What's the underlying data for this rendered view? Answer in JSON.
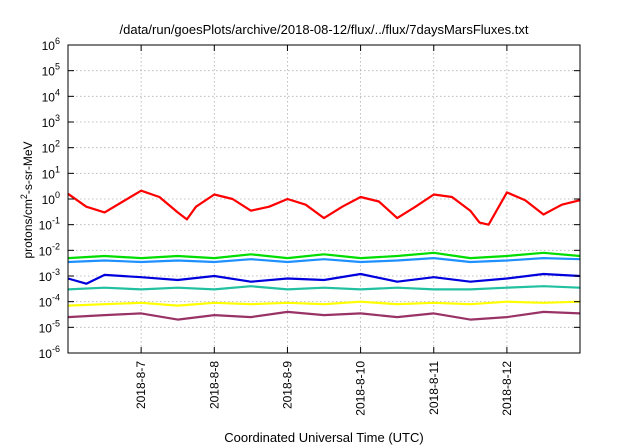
{
  "chart_data": {
    "type": "line",
    "title": "/data/run/goesPlots/archive/2018-08-12/flux/../flux/7daysMarsFluxes.txt",
    "xlabel": "Coordinated Universal Time (UTC)",
    "ylabel": "protons/cm2-s-sr-MeV",
    "ylabel_parts": {
      "pre": "protons/cm",
      "sup": "2",
      "post": "-s-sr-MeV"
    },
    "yscale": "log",
    "ylim_exp": [
      -6,
      6
    ],
    "y_tick_base": "10",
    "y_tick_exponents": [
      "-6",
      "-5",
      "-4",
      "-3",
      "-2",
      "-1",
      "0",
      "1",
      "2",
      "3",
      "4",
      "5",
      "6"
    ],
    "xlim": [
      "2018-08-06 00:00",
      "2018-08-12 23:59"
    ],
    "x_ticks": [
      "2018-8-7",
      "2018-8-8",
      "2018-8-9",
      "2018-8-10",
      "2018-8-11",
      "2018-8-12"
    ],
    "x_tick_dates": [
      "2018-08-07",
      "2018-08-08",
      "2018-08-09",
      "2018-08-10",
      "2018-08-11",
      "2018-08-12"
    ],
    "grid": true,
    "legend": "none",
    "series": [
      {
        "color": "#ff0000",
        "x": [
          "2018-08-06 00:00",
          "2018-08-06 06:00",
          "2018-08-06 12:00",
          "2018-08-06 18:00",
          "2018-08-07 00:00",
          "2018-08-07 06:00",
          "2018-08-07 12:00",
          "2018-08-07 15:00",
          "2018-08-07 18:00",
          "2018-08-08 00:00",
          "2018-08-08 06:00",
          "2018-08-08 12:00",
          "2018-08-08 18:00",
          "2018-08-09 00:00",
          "2018-08-09 06:00",
          "2018-08-09 12:00",
          "2018-08-09 18:00",
          "2018-08-10 00:00",
          "2018-08-10 06:00",
          "2018-08-10 12:00",
          "2018-08-10 18:00",
          "2018-08-11 00:00",
          "2018-08-11 06:00",
          "2018-08-11 12:00",
          "2018-08-11 15:00",
          "2018-08-11 18:00",
          "2018-08-12 00:00",
          "2018-08-12 06:00",
          "2018-08-12 12:00",
          "2018-08-12 18:00",
          "2018-08-12 23:59"
        ],
        "y": [
          1.6,
          0.5,
          0.3,
          0.8,
          2.1,
          1.2,
          0.3,
          0.16,
          0.5,
          1.5,
          1.0,
          0.35,
          0.5,
          1.0,
          0.6,
          0.18,
          0.5,
          1.2,
          0.8,
          0.18,
          0.5,
          1.5,
          1.2,
          0.35,
          0.12,
          0.1,
          1.8,
          0.9,
          0.25,
          0.6,
          0.9
        ]
      },
      {
        "color": "#00dd00",
        "x": [
          "2018-08-06 00:00",
          "2018-08-06 12:00",
          "2018-08-07 00:00",
          "2018-08-07 12:00",
          "2018-08-08 00:00",
          "2018-08-08 12:00",
          "2018-08-09 00:00",
          "2018-08-09 12:00",
          "2018-08-10 00:00",
          "2018-08-10 12:00",
          "2018-08-11 00:00",
          "2018-08-11 12:00",
          "2018-08-12 00:00",
          "2018-08-12 12:00",
          "2018-08-12 23:59"
        ],
        "y": [
          0.005,
          0.006,
          0.005,
          0.006,
          0.005,
          0.007,
          0.005,
          0.007,
          0.005,
          0.006,
          0.008,
          0.005,
          0.006,
          0.008,
          0.006
        ]
      },
      {
        "color": "#1e90ff",
        "x": [
          "2018-08-06 00:00",
          "2018-08-06 12:00",
          "2018-08-07 00:00",
          "2018-08-07 12:00",
          "2018-08-08 00:00",
          "2018-08-08 12:00",
          "2018-08-09 00:00",
          "2018-08-09 12:00",
          "2018-08-10 00:00",
          "2018-08-10 12:00",
          "2018-08-11 00:00",
          "2018-08-11 12:00",
          "2018-08-12 00:00",
          "2018-08-12 12:00",
          "2018-08-12 23:59"
        ],
        "y": [
          0.0035,
          0.004,
          0.0035,
          0.004,
          0.0035,
          0.0045,
          0.0035,
          0.0045,
          0.0035,
          0.004,
          0.005,
          0.0035,
          0.004,
          0.005,
          0.0045
        ]
      },
      {
        "color": "#0000dd",
        "x": [
          "2018-08-06 00:00",
          "2018-08-06 06:00",
          "2018-08-06 12:00",
          "2018-08-07 00:00",
          "2018-08-07 12:00",
          "2018-08-08 00:00",
          "2018-08-08 12:00",
          "2018-08-09 00:00",
          "2018-08-09 12:00",
          "2018-08-10 00:00",
          "2018-08-10 12:00",
          "2018-08-11 00:00",
          "2018-08-11 12:00",
          "2018-08-12 00:00",
          "2018-08-12 12:00",
          "2018-08-12 23:59"
        ],
        "y": [
          0.0008,
          0.0005,
          0.0011,
          0.0009,
          0.0007,
          0.001,
          0.0006,
          0.0008,
          0.0007,
          0.0012,
          0.0006,
          0.0009,
          0.0006,
          0.0008,
          0.0012,
          0.001
        ]
      },
      {
        "color": "#20c0a0",
        "x": [
          "2018-08-06 00:00",
          "2018-08-06 12:00",
          "2018-08-07 00:00",
          "2018-08-07 12:00",
          "2018-08-08 00:00",
          "2018-08-08 12:00",
          "2018-08-09 00:00",
          "2018-08-09 12:00",
          "2018-08-10 00:00",
          "2018-08-10 12:00",
          "2018-08-11 00:00",
          "2018-08-11 12:00",
          "2018-08-12 00:00",
          "2018-08-12 12:00",
          "2018-08-12 23:59"
        ],
        "y": [
          0.0003,
          0.00035,
          0.0003,
          0.00035,
          0.0003,
          0.0004,
          0.0003,
          0.00035,
          0.0003,
          0.00035,
          0.0003,
          0.0003,
          0.00035,
          0.0004,
          0.00035
        ]
      },
      {
        "color": "#ffff00",
        "x": [
          "2018-08-06 00:00",
          "2018-08-06 12:00",
          "2018-08-07 00:00",
          "2018-08-07 12:00",
          "2018-08-08 00:00",
          "2018-08-08 12:00",
          "2018-08-09 00:00",
          "2018-08-09 12:00",
          "2018-08-10 00:00",
          "2018-08-10 12:00",
          "2018-08-11 00:00",
          "2018-08-11 12:00",
          "2018-08-12 00:00",
          "2018-08-12 12:00",
          "2018-08-12 23:59"
        ],
        "y": [
          7e-05,
          8e-05,
          9e-05,
          7e-05,
          9e-05,
          8e-05,
          9e-05,
          8e-05,
          0.0001,
          8e-05,
          9e-05,
          8e-05,
          0.0001,
          9e-05,
          0.0001
        ]
      },
      {
        "color": "#993366",
        "x": [
          "2018-08-06 00:00",
          "2018-08-06 12:00",
          "2018-08-07 00:00",
          "2018-08-07 12:00",
          "2018-08-08 00:00",
          "2018-08-08 12:00",
          "2018-08-09 00:00",
          "2018-08-09 12:00",
          "2018-08-10 00:00",
          "2018-08-10 12:00",
          "2018-08-11 00:00",
          "2018-08-11 12:00",
          "2018-08-12 00:00",
          "2018-08-12 12:00",
          "2018-08-12 23:59"
        ],
        "y": [
          2.5e-05,
          3e-05,
          3.5e-05,
          2e-05,
          3e-05,
          2.5e-05,
          4e-05,
          3e-05,
          3.5e-05,
          2.5e-05,
          3.5e-05,
          2e-05,
          2.5e-05,
          4e-05,
          3.5e-05
        ]
      }
    ]
  }
}
